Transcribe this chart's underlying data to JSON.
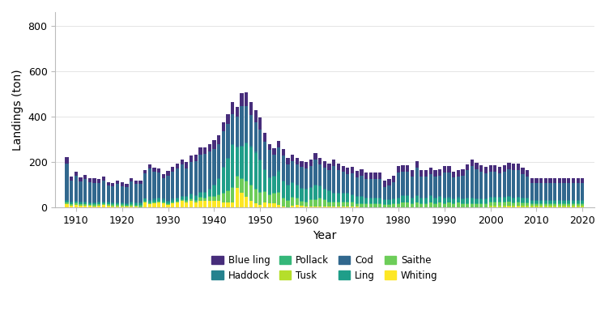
{
  "title": "",
  "xlabel": "Year",
  "ylabel": "Landings (ton)",
  "ylim": [
    0,
    860
  ],
  "yticks": [
    0,
    200,
    400,
    600,
    800
  ],
  "background_color": "#ffffff",
  "legend_order": [
    "Blue ling",
    "Haddock",
    "Pollack",
    "Tusk",
    "Cod",
    "Ling",
    "Saithe",
    "Whiting"
  ],
  "colors": {
    "Whiting": "#FDE725",
    "Tusk": "#B5DE2B",
    "Saithe": "#6DCD59",
    "Pollack": "#35B779",
    "Ling": "#1F9E89",
    "Haddock": "#26828E",
    "Cod": "#31688E",
    "Blue ling": "#472D7B"
  },
  "years": [
    1908,
    1909,
    1910,
    1911,
    1912,
    1913,
    1914,
    1915,
    1916,
    1917,
    1918,
    1919,
    1920,
    1921,
    1922,
    1923,
    1924,
    1925,
    1926,
    1927,
    1928,
    1929,
    1930,
    1931,
    1932,
    1933,
    1934,
    1935,
    1936,
    1937,
    1938,
    1939,
    1940,
    1941,
    1942,
    1943,
    1944,
    1945,
    1946,
    1947,
    1948,
    1949,
    1950,
    1951,
    1952,
    1953,
    1954,
    1955,
    1956,
    1957,
    1958,
    1959,
    1960,
    1961,
    1962,
    1963,
    1964,
    1965,
    1966,
    1967,
    1968,
    1969,
    1970,
    1971,
    1972,
    1973,
    1974,
    1975,
    1976,
    1977,
    1978,
    1979,
    1980,
    1981,
    1982,
    1983,
    1984,
    1985,
    1986,
    1987,
    1988,
    1989,
    1990,
    1991,
    1992,
    1993,
    1994,
    1995,
    1996,
    1997,
    1998,
    1999,
    2000,
    2001,
    2002,
    2003,
    2004,
    2005,
    2006,
    2007,
    2008,
    2009,
    2010,
    2011,
    2012,
    2013,
    2014,
    2015,
    2016,
    2017,
    2018,
    2019,
    2020
  ],
  "stack_order": [
    "Whiting",
    "Tusk",
    "Saithe",
    "Pollack",
    "Ling",
    "Haddock",
    "Cod",
    "Blue ling"
  ],
  "data": {
    "Whiting": [
      15,
      8,
      12,
      8,
      8,
      6,
      5,
      8,
      10,
      8,
      5,
      5,
      5,
      3,
      5,
      3,
      2,
      22,
      14,
      18,
      22,
      18,
      10,
      18,
      22,
      28,
      22,
      28,
      22,
      30,
      28,
      30,
      28,
      28,
      22,
      22,
      22,
      85,
      65,
      45,
      28,
      18,
      12,
      22,
      18,
      18,
      12,
      4,
      2,
      8,
      12,
      8,
      4,
      4,
      4,
      4,
      4,
      4,
      4,
      4,
      4,
      4,
      4,
      4,
      2,
      2,
      2,
      2,
      2,
      2,
      2,
      2,
      2,
      2,
      2,
      2,
      2,
      2,
      2,
      2,
      2,
      2,
      2,
      2,
      2,
      2,
      2,
      2,
      2,
      2,
      2,
      2,
      2,
      2,
      2,
      2,
      4,
      2,
      4,
      2,
      2,
      2,
      2,
      2,
      2,
      2,
      2,
      2,
      2,
      2,
      2,
      2,
      2
    ],
    "Tusk": [
      0,
      0,
      0,
      0,
      0,
      0,
      0,
      0,
      0,
      0,
      0,
      0,
      0,
      0,
      0,
      0,
      0,
      0,
      0,
      0,
      0,
      0,
      0,
      0,
      0,
      0,
      0,
      0,
      0,
      0,
      0,
      0,
      0,
      0,
      0,
      0,
      0,
      0,
      0,
      0,
      0,
      0,
      0,
      0,
      0,
      0,
      0,
      0,
      0,
      0,
      0,
      0,
      0,
      0,
      0,
      0,
      0,
      0,
      0,
      0,
      0,
      0,
      0,
      0,
      0,
      0,
      0,
      0,
      0,
      0,
      0,
      0,
      0,
      0,
      0,
      0,
      0,
      0,
      0,
      0,
      0,
      0,
      0,
      0,
      0,
      0,
      0,
      0,
      0,
      0,
      0,
      0,
      5,
      5,
      5,
      5,
      5,
      5,
      5,
      5,
      5,
      5,
      5,
      5,
      5,
      5,
      5,
      5,
      5,
      5,
      5,
      5,
      5
    ],
    "Saithe": [
      5,
      5,
      5,
      5,
      5,
      5,
      5,
      5,
      5,
      5,
      5,
      5,
      5,
      5,
      5,
      5,
      5,
      5,
      5,
      5,
      5,
      5,
      5,
      5,
      5,
      5,
      8,
      8,
      8,
      12,
      12,
      18,
      20,
      25,
      40,
      50,
      65,
      52,
      60,
      70,
      70,
      62,
      52,
      45,
      35,
      42,
      52,
      35,
      28,
      35,
      28,
      18,
      18,
      28,
      28,
      35,
      28,
      18,
      18,
      18,
      18,
      18,
      18,
      12,
      12,
      12,
      12,
      12,
      12,
      8,
      8,
      12,
      12,
      18,
      18,
      12,
      18,
      12,
      12,
      18,
      12,
      18,
      12,
      18,
      12,
      18,
      12,
      12,
      12,
      12,
      12,
      12,
      15,
      15,
      15,
      15,
      15,
      12,
      12,
      12,
      12,
      8,
      8,
      8,
      8,
      8,
      8,
      8,
      8,
      8,
      8,
      8,
      8
    ],
    "Pollack": [
      3,
      3,
      3,
      3,
      3,
      3,
      3,
      3,
      3,
      3,
      3,
      3,
      3,
      3,
      3,
      3,
      3,
      3,
      3,
      3,
      3,
      3,
      3,
      3,
      3,
      3,
      3,
      3,
      3,
      3,
      3,
      3,
      3,
      3,
      3,
      3,
      3,
      3,
      3,
      3,
      3,
      3,
      3,
      3,
      3,
      3,
      3,
      3,
      3,
      3,
      3,
      3,
      3,
      3,
      3,
      3,
      3,
      3,
      3,
      3,
      3,
      3,
      3,
      3,
      3,
      3,
      3,
      3,
      3,
      3,
      3,
      3,
      3,
      3,
      3,
      3,
      3,
      3,
      3,
      3,
      3,
      3,
      3,
      3,
      3,
      3,
      3,
      3,
      3,
      3,
      3,
      3,
      3,
      3,
      3,
      3,
      3,
      3,
      3,
      3,
      3,
      3,
      3,
      3,
      3,
      3,
      3,
      3,
      3,
      3,
      3,
      3,
      3
    ],
    "Ling": [
      5,
      5,
      5,
      5,
      5,
      5,
      5,
      5,
      5,
      5,
      5,
      5,
      5,
      5,
      8,
      8,
      8,
      8,
      8,
      8,
      8,
      8,
      8,
      8,
      8,
      12,
      15,
      18,
      18,
      18,
      22,
      28,
      45,
      70,
      110,
      140,
      185,
      125,
      140,
      165,
      165,
      158,
      140,
      95,
      72,
      72,
      92,
      72,
      62,
      62,
      52,
      52,
      52,
      52,
      62,
      52,
      45,
      45,
      35,
      35,
      35,
      35,
      30,
      28,
      28,
      22,
      22,
      22,
      22,
      18,
      18,
      18,
      22,
      28,
      28,
      22,
      28,
      22,
      22,
      28,
      22,
      22,
      22,
      18,
      18,
      18,
      18,
      22,
      22,
      18,
      18,
      18,
      18,
      18,
      18,
      18,
      18,
      18,
      18,
      18,
      18,
      12,
      12,
      12,
      12,
      12,
      12,
      12,
      12,
      12,
      12,
      12,
      12
    ],
    "Haddock": [
      4,
      3,
      3,
      3,
      3,
      3,
      3,
      3,
      3,
      3,
      3,
      3,
      3,
      3,
      3,
      3,
      3,
      3,
      4,
      4,
      4,
      4,
      4,
      4,
      4,
      4,
      4,
      4,
      4,
      4,
      4,
      4,
      4,
      4,
      4,
      4,
      4,
      4,
      4,
      4,
      4,
      4,
      4,
      4,
      4,
      4,
      4,
      4,
      4,
      4,
      4,
      4,
      4,
      4,
      4,
      4,
      4,
      4,
      4,
      4,
      4,
      4,
      4,
      4,
      4,
      4,
      4,
      4,
      4,
      4,
      4,
      4,
      4,
      4,
      4,
      4,
      4,
      4,
      4,
      4,
      4,
      4,
      4,
      4,
      4,
      4,
      4,
      4,
      4,
      4,
      4,
      4,
      4,
      4,
      4,
      4,
      4,
      4,
      4,
      4,
      4,
      4,
      4,
      4,
      4,
      4,
      4,
      4,
      4,
      4,
      4,
      4,
      4
    ],
    "Cod": [
      160,
      95,
      110,
      92,
      100,
      90,
      88,
      82,
      92,
      72,
      72,
      82,
      72,
      72,
      92,
      82,
      82,
      110,
      138,
      120,
      110,
      92,
      110,
      120,
      130,
      138,
      120,
      138,
      148,
      165,
      165,
      165,
      158,
      148,
      158,
      148,
      130,
      130,
      175,
      158,
      138,
      130,
      130,
      120,
      120,
      92,
      102,
      110,
      92,
      92,
      92,
      92,
      92,
      92,
      110,
      92,
      92,
      92,
      120,
      102,
      92,
      82,
      92,
      82,
      92,
      82,
      82,
      82,
      82,
      55,
      62,
      72,
      110,
      102,
      102,
      92,
      120,
      92,
      92,
      92,
      92,
      92,
      110,
      110,
      92,
      92,
      102,
      120,
      138,
      130,
      120,
      110,
      110,
      110,
      102,
      110,
      120,
      120,
      120,
      102,
      92,
      72,
      72,
      72,
      72,
      72,
      72,
      72,
      72,
      72,
      72,
      72,
      72
    ],
    "Blue ling": [
      28,
      18,
      18,
      18,
      18,
      18,
      18,
      18,
      18,
      14,
      14,
      14,
      18,
      14,
      14,
      14,
      14,
      14,
      18,
      18,
      18,
      18,
      22,
      22,
      22,
      22,
      28,
      28,
      28,
      32,
      32,
      32,
      38,
      38,
      38,
      45,
      55,
      45,
      55,
      62,
      55,
      55,
      55,
      38,
      28,
      28,
      28,
      28,
      28,
      28,
      28,
      28,
      28,
      28,
      28,
      28,
      28,
      28,
      28,
      28,
      28,
      28,
      28,
      28,
      28,
      28,
      28,
      28,
      28,
      28,
      28,
      28,
      28,
      28,
      28,
      28,
      28,
      28,
      28,
      28,
      28,
      28,
      28,
      28,
      28,
      28,
      28,
      28,
      28,
      28,
      28,
      28,
      28,
      28,
      28,
      28,
      28,
      28,
      28,
      28,
      28,
      22,
      22,
      22,
      22,
      22,
      22,
      22,
      22,
      22,
      22,
      22,
      22
    ]
  }
}
